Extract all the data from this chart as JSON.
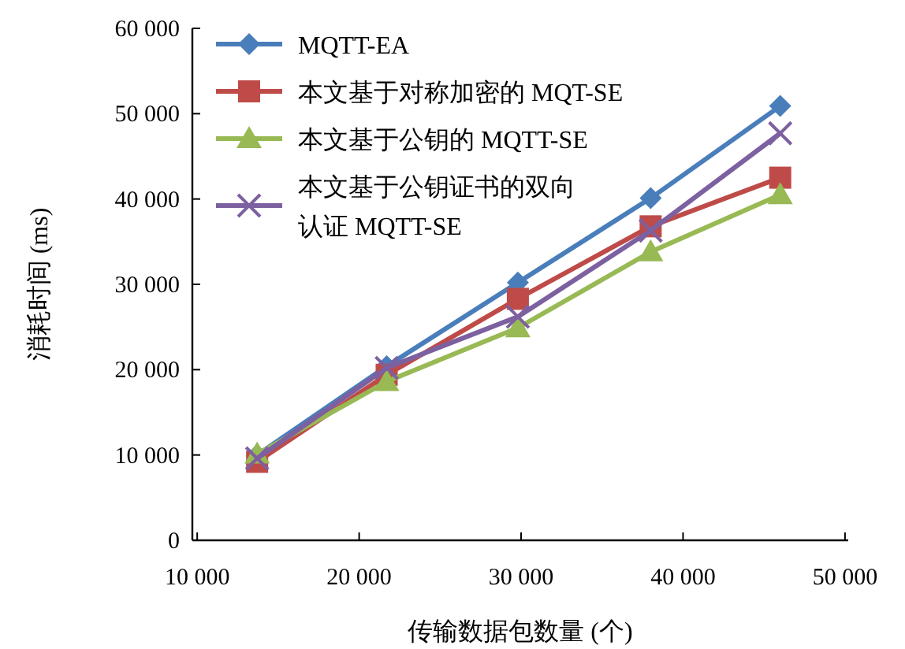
{
  "chart_data": {
    "type": "line",
    "xlabel": "传输数据包数量 (个)",
    "ylabel": "消耗时间 (ms)",
    "x": [
      13700,
      21700,
      29800,
      38000,
      46000
    ],
    "series": [
      {
        "name": "MQTT-EA",
        "color": "#4a7ebb",
        "marker": "diamond",
        "values": [
          10000,
          20400,
          30200,
          40100,
          50900
        ]
      },
      {
        "name": "本文基于对称加密的 MQT-SE",
        "color": "#be4b48",
        "marker": "square",
        "values": [
          9200,
          19400,
          28300,
          36800,
          42500
        ]
      },
      {
        "name": "本文基于公钥的 MQTT-SE",
        "color": "#98b954",
        "marker": "triangle",
        "values": [
          10100,
          18600,
          24900,
          33800,
          40500
        ]
      },
      {
        "name": "本文基于公钥证书的双向认证 MQTT-SE",
        "color": "#7d60a0",
        "marker": "cross",
        "values": [
          9600,
          20200,
          26200,
          36300,
          47700
        ]
      }
    ],
    "xlim": [
      9700,
      50200
    ],
    "ylim": [
      0,
      60000
    ],
    "xticks": [
      {
        "value": 10000,
        "label": "10 000"
      },
      {
        "value": 20000,
        "label": "20 000"
      },
      {
        "value": 30000,
        "label": "30 000"
      },
      {
        "value": 40000,
        "label": "40 000"
      },
      {
        "value": 50000,
        "label": "50 000"
      }
    ],
    "yticks": [
      0,
      {
        "value": 10000,
        "label": "10 000"
      },
      {
        "value": 20000,
        "label": "20 000"
      },
      {
        "value": 30000,
        "label": "30 000"
      },
      {
        "value": 40000,
        "label": "40 000"
      },
      {
        "value": 50000,
        "label": "50 000"
      },
      {
        "value": 60000,
        "label": "60 000"
      }
    ],
    "legend": "top left",
    "grid": false
  }
}
